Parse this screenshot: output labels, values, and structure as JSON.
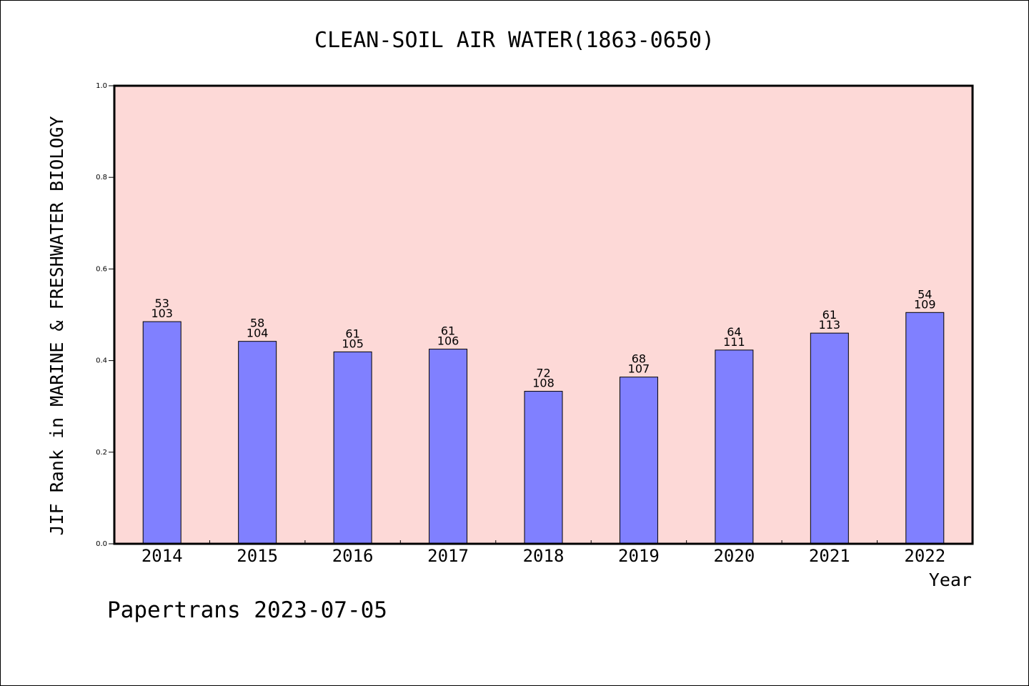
{
  "chart_data": {
    "type": "bar",
    "title": "CLEAN-SOIL AIR WATER(1863-0650)",
    "ylabel": "JIF Rank in MARINE & FRESHWATER BIOLOGY",
    "xlabel": "Year",
    "ylim": [
      0,
      1.0
    ],
    "yticks": [
      "0.0",
      "0.2",
      "0.4",
      "0.6",
      "0.8",
      "1.0"
    ],
    "ytick_values": [
      0.0,
      0.2,
      0.4,
      0.6,
      0.8,
      1.0
    ],
    "categories": [
      "2014",
      "2015",
      "2016",
      "2017",
      "2018",
      "2019",
      "2020",
      "2021",
      "2022"
    ],
    "values": [
      0.485,
      0.442,
      0.419,
      0.425,
      0.333,
      0.364,
      0.423,
      0.46,
      0.505
    ],
    "ranks": [
      "53",
      "58",
      "61",
      "61",
      "72",
      "68",
      "64",
      "61",
      "54"
    ],
    "totals": [
      "103",
      "104",
      "105",
      "106",
      "108",
      "107",
      "111",
      "113",
      "109"
    ],
    "grid": false,
    "colors": {
      "plot_bg": "#fdd9d7",
      "bar": "#8080ff",
      "frame": "#000000"
    }
  },
  "footer": "Papertrans 2023-07-05"
}
